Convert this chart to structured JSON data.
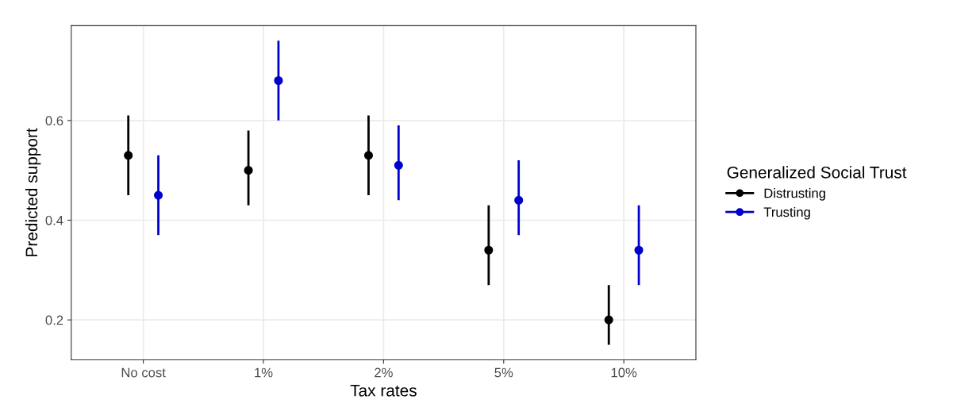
{
  "chart_data": {
    "type": "scatter",
    "xlabel": "Tax rates",
    "ylabel": "Predicted support",
    "legend_title": "Generalized Social Trust",
    "categories": [
      "No cost",
      "1%",
      "2%",
      "5%",
      "10%"
    ],
    "series": [
      {
        "name": "Distrusting",
        "color": "#000000",
        "values": [
          0.53,
          0.5,
          0.53,
          0.34,
          0.2
        ],
        "errors": [
          [
            0.45,
            0.61
          ],
          [
            0.43,
            0.58
          ],
          [
            0.45,
            0.61
          ],
          [
            0.27,
            0.43
          ],
          [
            0.15,
            0.27
          ]
        ]
      },
      {
        "name": "Trusting",
        "color": "#0000cc",
        "values": [
          0.45,
          0.68,
          0.51,
          0.44,
          0.34
        ],
        "errors": [
          [
            0.37,
            0.53
          ],
          [
            0.6,
            0.76
          ],
          [
            0.44,
            0.59
          ],
          [
            0.37,
            0.52
          ],
          [
            0.27,
            0.43
          ]
        ]
      }
    ],
    "ylim": [
      0.12,
      0.79
    ],
    "yticks": [
      0.2,
      0.4,
      0.6
    ],
    "grid": true,
    "legend": "right",
    "marker": "circle"
  }
}
